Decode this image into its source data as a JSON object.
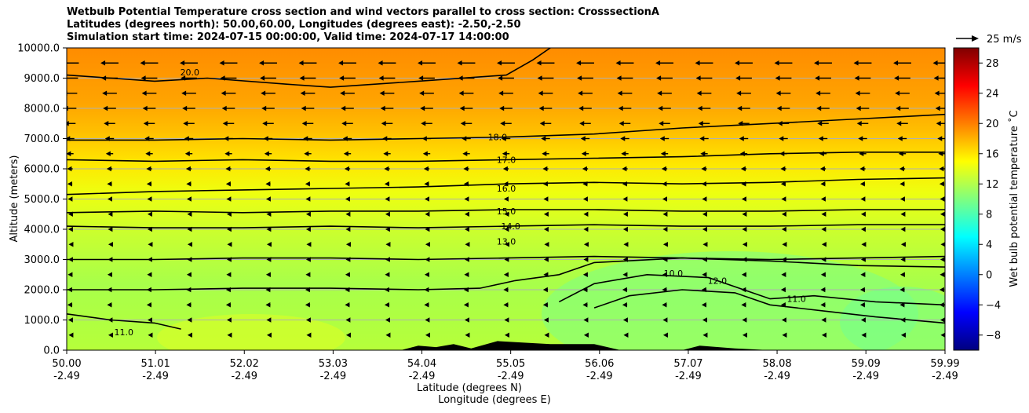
{
  "chart_data": {
    "type": "heatmap",
    "title_lines": [
      "Wetbulb Potential Temperature cross section and wind vectors parallel to cross section: CrosssectionA",
      "Latitudes (degrees north): 50.00,60.00, Longitudes (degrees east): -2.50,-2.50",
      "Simulation start time: 2024-07-15 00:00:00, Valid time: 2024-07-17 14:00:00"
    ],
    "xlabel": "Latitude (degrees N)",
    "xlabel2": "Longitude (degrees E)",
    "ylabel": "Altitude (meters)",
    "xlim": [
      50.0,
      59.99
    ],
    "ylim": [
      0,
      10000
    ],
    "x_ticks": [
      {
        "lat": 50.0,
        "label": "50.00",
        "lon": "-2.49"
      },
      {
        "lat": 51.01,
        "label": "51.01",
        "lon": "-2.49"
      },
      {
        "lat": 52.02,
        "label": "52.02",
        "lon": "-2.49"
      },
      {
        "lat": 53.03,
        "label": "53.03",
        "lon": "-2.49"
      },
      {
        "lat": 54.04,
        "label": "54.04",
        "lon": "-2.49"
      },
      {
        "lat": 55.05,
        "label": "55.05",
        "lon": "-2.49"
      },
      {
        "lat": 56.06,
        "label": "56.06",
        "lon": "-2.49"
      },
      {
        "lat": 57.07,
        "label": "57.07",
        "lon": "-2.49"
      },
      {
        "lat": 58.08,
        "label": "58.08",
        "lon": "-2.49"
      },
      {
        "lat": 59.09,
        "label": "59.09",
        "lon": "-2.49"
      },
      {
        "lat": 59.99,
        "label": "59.99",
        "lon": "-2.49"
      }
    ],
    "y_ticks": [
      {
        "value": 0,
        "label": "0.0"
      },
      {
        "value": 1000,
        "label": "1000.0"
      },
      {
        "value": 2000,
        "label": "2000.0"
      },
      {
        "value": 3000,
        "label": "3000.0"
      },
      {
        "value": 4000,
        "label": "4000.0"
      },
      {
        "value": 5000,
        "label": "5000.0"
      },
      {
        "value": 6000,
        "label": "6000.0"
      },
      {
        "value": 7000,
        "label": "7000.0"
      },
      {
        "value": 8000,
        "label": "8000.0"
      },
      {
        "value": 9000,
        "label": "9000.0"
      },
      {
        "value": 10000,
        "label": "10000.0"
      }
    ],
    "grid": "horizontal",
    "colorbar": {
      "label": "Wet bulb potential temperature $^\\circ$C",
      "label_text": "Wet bulb potential temperature ˚C",
      "range": [
        -10,
        30
      ],
      "ticks": [
        {
          "value": -8,
          "label": "−8"
        },
        {
          "value": -4,
          "label": "−4"
        },
        {
          "value": 0,
          "label": "0"
        },
        {
          "value": 4,
          "label": "4"
        },
        {
          "value": 8,
          "label": "8"
        },
        {
          "value": 12,
          "label": "12"
        },
        {
          "value": 16,
          "label": "16"
        },
        {
          "value": 20,
          "label": "20"
        },
        {
          "value": 24,
          "label": "24"
        },
        {
          "value": 28,
          "label": "28"
        }
      ],
      "colormap": "jet",
      "colors": [
        "#00007f",
        "#0000ff",
        "#007fff",
        "#00ffff",
        "#7fff7f",
        "#ffff00",
        "#ff7f00",
        "#ff0000",
        "#7f0000"
      ]
    },
    "quiver_key": {
      "label": "25 m/s",
      "speed": 25
    },
    "wind_rows": [
      {
        "altitude": 9500,
        "speed": 22
      },
      {
        "altitude": 9000,
        "speed": 20
      },
      {
        "altitude": 8500,
        "speed": 18
      },
      {
        "altitude": 8000,
        "speed": 16
      },
      {
        "altitude": 7500,
        "speed": 14
      },
      {
        "altitude": 7000,
        "speed": 11
      },
      {
        "altitude": 6500,
        "speed": 9
      },
      {
        "altitude": 6000,
        "speed": 7
      },
      {
        "altitude": 5500,
        "speed": 6
      },
      {
        "altitude": 5000,
        "speed": 5
      },
      {
        "altitude": 4500,
        "speed": 4
      },
      {
        "altitude": 4000,
        "speed": 4
      },
      {
        "altitude": 3500,
        "speed": 3
      },
      {
        "altitude": 3000,
        "speed": 4
      },
      {
        "altitude": 2500,
        "speed": 5
      },
      {
        "altitude": 2000,
        "speed": 6
      },
      {
        "altitude": 1500,
        "speed": 6
      },
      {
        "altitude": 1000,
        "speed": 4
      },
      {
        "altitude": 500,
        "speed": 3
      }
    ],
    "contours": [
      {
        "label": "10.0",
        "points": [
          [
            56.0,
            1400
          ],
          [
            56.4,
            1800
          ],
          [
            57.0,
            2000
          ],
          [
            57.6,
            1900
          ],
          [
            58.0,
            1500
          ],
          [
            58.6,
            1300
          ],
          [
            59.2,
            1100
          ],
          [
            59.99,
            900
          ]
        ],
        "label_at": [
          56.9,
          2550
        ]
      },
      {
        "label": "11.0",
        "points": [
          [
            50.0,
            1200
          ],
          [
            50.5,
            1000
          ],
          [
            51.0,
            900
          ],
          [
            51.3,
            700
          ]
        ],
        "label_at": [
          50.65,
          600
        ]
      },
      {
        "label": "11.0",
        "points": [
          [
            55.6,
            1600
          ],
          [
            56.0,
            2200
          ],
          [
            56.6,
            2500
          ],
          [
            57.3,
            2400
          ],
          [
            58.0,
            1700
          ],
          [
            58.5,
            1800
          ],
          [
            59.2,
            1600
          ],
          [
            59.99,
            1500
          ]
        ],
        "label_at": [
          58.3,
          1700
        ]
      },
      {
        "label": "12.0",
        "points": [
          [
            50.0,
            2000
          ],
          [
            51.0,
            2000
          ],
          [
            52.0,
            2050
          ],
          [
            53.0,
            2050
          ],
          [
            54.0,
            2000
          ],
          [
            54.7,
            2050
          ],
          [
            55.1,
            2300
          ],
          [
            55.6,
            2500
          ],
          [
            56.0,
            2900
          ],
          [
            57.0,
            3050
          ],
          [
            58.0,
            2950
          ],
          [
            59.0,
            2800
          ],
          [
            59.99,
            2750
          ]
        ],
        "label_at": [
          57.4,
          2300
        ]
      },
      {
        "label": "13.0",
        "points": [
          [
            50.0,
            3000
          ],
          [
            51.0,
            3000
          ],
          [
            52.0,
            3050
          ],
          [
            53.0,
            3050
          ],
          [
            54.0,
            3000
          ],
          [
            55.0,
            3050
          ],
          [
            56.0,
            3100
          ],
          [
            57.0,
            3050
          ],
          [
            58.0,
            3000
          ],
          [
            59.0,
            3050
          ],
          [
            59.99,
            3100
          ]
        ],
        "label_at": [
          55.0,
          3600
        ]
      },
      {
        "label": "14.0",
        "points": [
          [
            50.0,
            4100
          ],
          [
            51.0,
            4050
          ],
          [
            52.0,
            4050
          ],
          [
            53.0,
            4100
          ],
          [
            54.0,
            4050
          ],
          [
            55.0,
            4100
          ],
          [
            56.0,
            4150
          ],
          [
            57.0,
            4100
          ],
          [
            58.0,
            4100
          ],
          [
            59.0,
            4150
          ],
          [
            59.99,
            4150
          ]
        ],
        "label_at": [
          55.05,
          4100
        ]
      },
      {
        "label": "15.0",
        "points": [
          [
            50.0,
            4550
          ],
          [
            51.0,
            4600
          ],
          [
            52.0,
            4550
          ],
          [
            53.0,
            4600
          ],
          [
            54.0,
            4600
          ],
          [
            55.0,
            4650
          ],
          [
            56.0,
            4650
          ],
          [
            57.0,
            4600
          ],
          [
            58.0,
            4600
          ],
          [
            59.0,
            4650
          ],
          [
            59.99,
            4650
          ]
        ],
        "label_at": [
          55.0,
          4600
        ]
      },
      {
        "label": "16.0",
        "points": [
          [
            50.0,
            5150
          ],
          [
            51.0,
            5250
          ],
          [
            52.0,
            5300
          ],
          [
            53.0,
            5350
          ],
          [
            54.0,
            5400
          ],
          [
            55.0,
            5500
          ],
          [
            56.0,
            5550
          ],
          [
            57.0,
            5500
          ],
          [
            58.0,
            5550
          ],
          [
            59.0,
            5650
          ],
          [
            59.99,
            5700
          ]
        ],
        "label_at": [
          55.0,
          5350
        ]
      },
      {
        "label": "17.0",
        "points": [
          [
            50.0,
            6300
          ],
          [
            51.0,
            6250
          ],
          [
            52.0,
            6300
          ],
          [
            53.0,
            6250
          ],
          [
            54.0,
            6250
          ],
          [
            55.0,
            6300
          ],
          [
            56.0,
            6350
          ],
          [
            57.0,
            6400
          ],
          [
            58.0,
            6500
          ],
          [
            59.0,
            6550
          ],
          [
            59.99,
            6550
          ]
        ],
        "label_at": [
          55.0,
          6300
        ]
      },
      {
        "label": "18.0",
        "points": [
          [
            50.0,
            6950
          ],
          [
            51.0,
            6950
          ],
          [
            52.0,
            7000
          ],
          [
            53.0,
            6950
          ],
          [
            54.0,
            7000
          ],
          [
            55.0,
            7050
          ],
          [
            56.0,
            7150
          ],
          [
            57.0,
            7350
          ],
          [
            58.0,
            7500
          ],
          [
            59.0,
            7650
          ],
          [
            59.99,
            7800
          ]
        ],
        "label_at": [
          54.9,
          7050
        ]
      },
      {
        "label": "20.0",
        "points": [
          [
            50.0,
            9100
          ],
          [
            50.5,
            9000
          ],
          [
            51.0,
            8900
          ],
          [
            51.6,
            9000
          ],
          [
            52.5,
            8800
          ],
          [
            53.0,
            8700
          ],
          [
            54.0,
            8900
          ],
          [
            55.0,
            9100
          ],
          [
            55.3,
            9600
          ],
          [
            55.5,
            10000
          ]
        ],
        "label_at": [
          51.4,
          9200
        ]
      }
    ],
    "terrain": [
      [
        50.0,
        0
      ],
      [
        53.8,
        0
      ],
      [
        54.0,
        150
      ],
      [
        54.2,
        100
      ],
      [
        54.4,
        200
      ],
      [
        54.6,
        60
      ],
      [
        54.9,
        300
      ],
      [
        55.2,
        250
      ],
      [
        55.5,
        200
      ],
      [
        56.0,
        200
      ],
      [
        56.3,
        0
      ],
      [
        57.0,
        0
      ],
      [
        57.2,
        150
      ],
      [
        57.6,
        60
      ],
      [
        58.0,
        0
      ],
      [
        59.99,
        0
      ]
    ]
  }
}
